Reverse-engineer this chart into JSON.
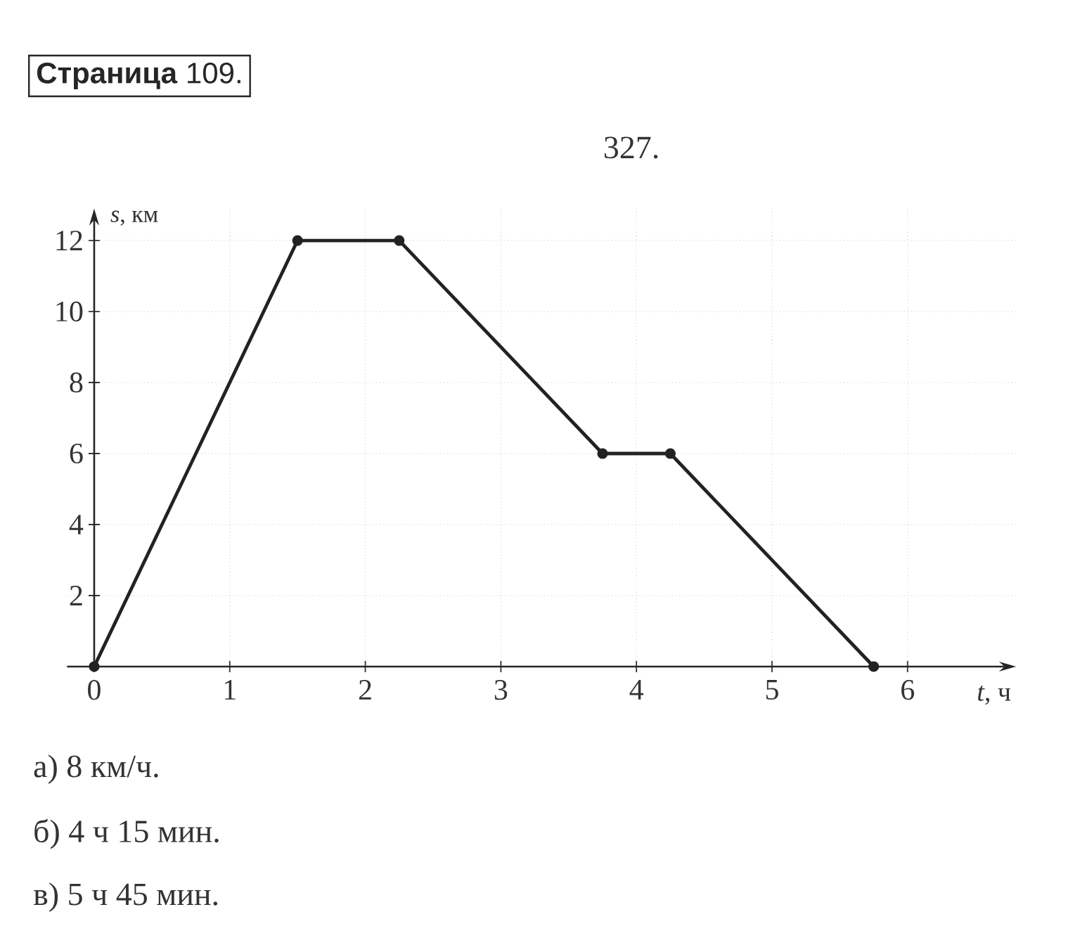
{
  "chart_data": {
    "type": "line",
    "title": "327.",
    "xlabel": "*t*, ч",
    "ylabel": "*s*, км",
    "x": [
      0,
      1.5,
      2.25,
      3.75,
      4.25,
      5.75
    ],
    "series": [
      {
        "color": "#222222",
        "values": [
          0,
          12,
          12,
          6,
          6,
          0
        ]
      }
    ],
    "xlim": [
      -0.2,
      6.8
    ],
    "ylim": [
      0,
      12.9
    ],
    "xticks": [
      {
        "value": 0,
        "label": "0"
      },
      1,
      2,
      3,
      4,
      5,
      6
    ],
    "yticks": [
      {
        "value": 0,
        "label": null
      },
      2,
      4,
      6,
      8,
      10,
      12
    ],
    "grid": true,
    "marker": "circle",
    "line_style": "solid",
    "annotations": [
      "**Страница** 109.",
      "а) 8 км/ч.",
      "б) 4 ч 15 мин.",
      "в) 5 ч 45 мин."
    ]
  }
}
